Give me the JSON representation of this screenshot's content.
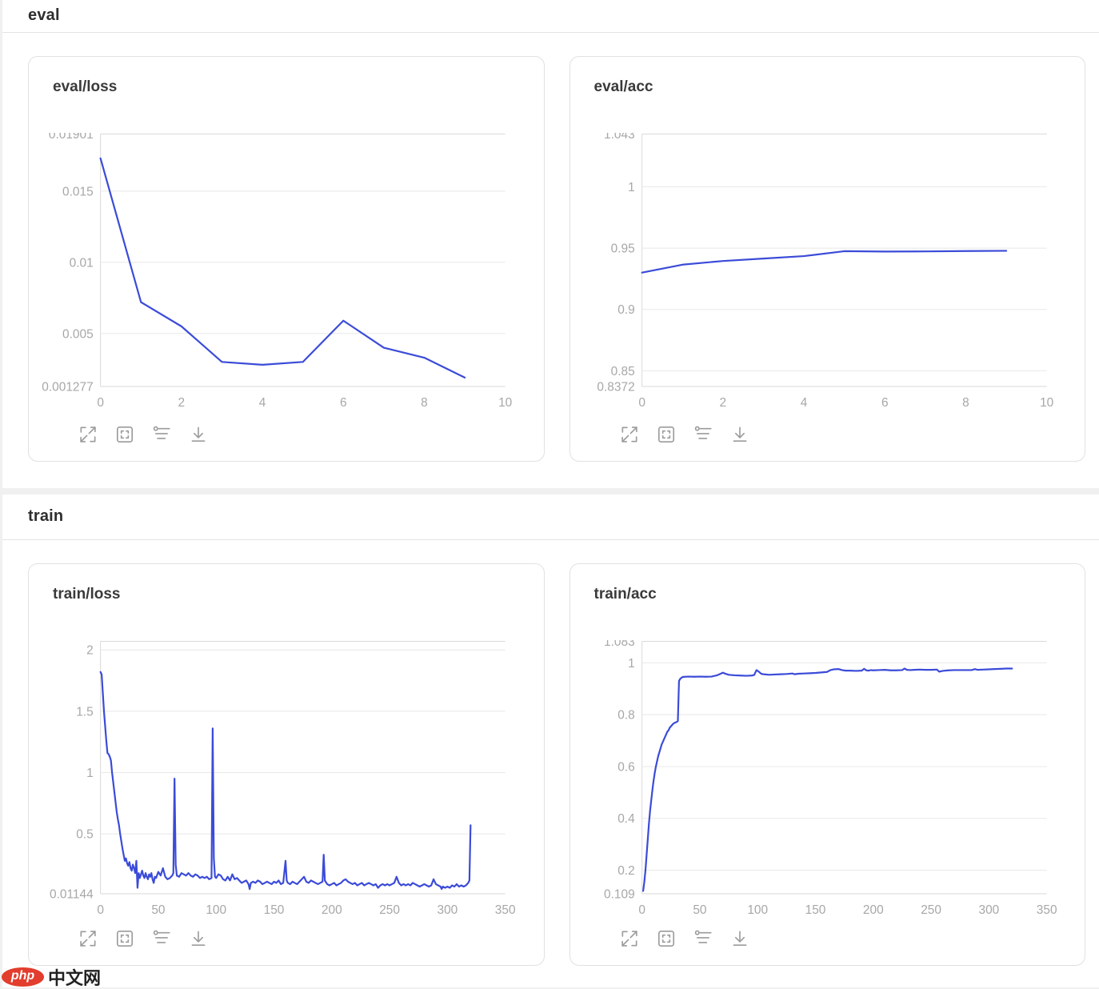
{
  "page": {
    "background": "#f0f0f1",
    "panel_background": "#ffffff",
    "card_border": "#e1e1e1"
  },
  "sections": [
    {
      "title": "eval"
    },
    {
      "title": "train"
    }
  ],
  "toolbar": {
    "icons": [
      {
        "name": "expand-icon"
      },
      {
        "name": "fit-view-icon"
      },
      {
        "name": "smoothing-filter-icon"
      },
      {
        "name": "download-icon"
      }
    ]
  },
  "watermark": {
    "badge": "php",
    "text": "中文网",
    "badge_color": "#e23d2d"
  },
  "chart_data": [
    {
      "type": "line",
      "title": "eval/loss",
      "line_color": "#3b4bd8",
      "xlim": [
        0,
        10
      ],
      "xticks": [
        {
          "v": 0,
          "label": "0"
        },
        {
          "v": 2,
          "label": "2"
        },
        {
          "v": 4,
          "label": "4"
        },
        {
          "v": 6,
          "label": "6"
        },
        {
          "v": 8,
          "label": "8"
        },
        {
          "v": 10,
          "label": "10"
        }
      ],
      "ylim": [
        0.001277,
        0.01901
      ],
      "yticks": [
        {
          "v": 0.01901,
          "label": "0.01901"
        },
        {
          "v": 0.015,
          "label": "0.015"
        },
        {
          "v": 0.01,
          "label": "0.01"
        },
        {
          "v": 0.005,
          "label": "0.005"
        },
        {
          "v": 0.001277,
          "label": "0.001277"
        }
      ],
      "x": [
        0,
        1,
        2,
        3,
        4,
        5,
        6,
        7,
        8,
        9
      ],
      "y": [
        0.0173,
        0.0072,
        0.0055,
        0.003,
        0.0028,
        0.003,
        0.0059,
        0.004,
        0.0033,
        0.0019
      ]
    },
    {
      "type": "line",
      "title": "eval/acc",
      "line_color": "#3b4bd8",
      "xlim": [
        0,
        10
      ],
      "xticks": [
        {
          "v": 0,
          "label": "0"
        },
        {
          "v": 2,
          "label": "2"
        },
        {
          "v": 4,
          "label": "4"
        },
        {
          "v": 6,
          "label": "6"
        },
        {
          "v": 8,
          "label": "8"
        },
        {
          "v": 10,
          "label": "10"
        }
      ],
      "ylim": [
        0.8372,
        1.043
      ],
      "yticks": [
        {
          "v": 1.043,
          "label": "1.043"
        },
        {
          "v": 1,
          "label": "1"
        },
        {
          "v": 0.95,
          "label": "0.95"
        },
        {
          "v": 0.9,
          "label": "0.9"
        },
        {
          "v": 0.85,
          "label": "0.85"
        },
        {
          "v": 0.8372,
          "label": "0.8372"
        }
      ],
      "x": [
        0,
        1,
        2,
        3,
        4,
        5,
        6,
        7,
        8,
        9
      ],
      "y": [
        0.93,
        0.9365,
        0.9395,
        0.9415,
        0.9435,
        0.9475,
        0.9472,
        0.9473,
        0.9476,
        0.9478
      ]
    },
    {
      "type": "line",
      "title": "train/loss",
      "line_color": "#3b4bd8",
      "xlim": [
        0,
        350
      ],
      "xticks": [
        {
          "v": 0,
          "label": "0"
        },
        {
          "v": 50,
          "label": "50"
        },
        {
          "v": 100,
          "label": "100"
        },
        {
          "v": 150,
          "label": "150"
        },
        {
          "v": 200,
          "label": "200"
        },
        {
          "v": 250,
          "label": "250"
        },
        {
          "v": 300,
          "label": "300"
        },
        {
          "v": 350,
          "label": "350"
        }
      ],
      "ylim": [
        0.01144,
        2.07
      ],
      "yticks": [
        {
          "v": 2,
          "label": "2"
        },
        {
          "v": 1.5,
          "label": "1.5"
        },
        {
          "v": 1,
          "label": "1"
        },
        {
          "v": 0.5,
          "label": "0.5"
        },
        {
          "v": 0.01144,
          "label": "0.01144"
        }
      ],
      "x": [
        0,
        1,
        2,
        3,
        4,
        5,
        6,
        7,
        8,
        9,
        10,
        11,
        12,
        13,
        14,
        15,
        16,
        17,
        18,
        19,
        20,
        21,
        22,
        23,
        24,
        25,
        26,
        27,
        28,
        29,
        30,
        31,
        32,
        33,
        34,
        35,
        36,
        37,
        38,
        39,
        40,
        41,
        42,
        43,
        44,
        45,
        46,
        47,
        48,
        50,
        52,
        54,
        56,
        58,
        60,
        62,
        63,
        64,
        65,
        66,
        68,
        70,
        72,
        74,
        76,
        78,
        80,
        82,
        84,
        86,
        88,
        90,
        92,
        94,
        96,
        97,
        98,
        99,
        100,
        102,
        104,
        106,
        108,
        110,
        112,
        114,
        116,
        118,
        120,
        122,
        124,
        126,
        128,
        129,
        130,
        132,
        134,
        136,
        138,
        140,
        142,
        144,
        146,
        148,
        150,
        152,
        154,
        156,
        158,
        160,
        161,
        162,
        164,
        166,
        168,
        170,
        172,
        174,
        176,
        178,
        180,
        182,
        184,
        186,
        188,
        190,
        192,
        193,
        194,
        196,
        198,
        200,
        202,
        204,
        206,
        208,
        210,
        212,
        214,
        216,
        218,
        220,
        222,
        224,
        226,
        228,
        230,
        232,
        234,
        236,
        238,
        240,
        242,
        244,
        246,
        248,
        250,
        252,
        254,
        256,
        258,
        260,
        262,
        264,
        266,
        268,
        270,
        272,
        274,
        276,
        278,
        280,
        282,
        284,
        286,
        288,
        290,
        292,
        294,
        295,
        296,
        298,
        300,
        302,
        304,
        306,
        308,
        310,
        312,
        314,
        316,
        318,
        319,
        320
      ],
      "y": [
        1.82,
        1.8,
        1.65,
        1.5,
        1.38,
        1.26,
        1.16,
        1.15,
        1.13,
        1.1,
        1.0,
        0.92,
        0.84,
        0.76,
        0.68,
        0.62,
        0.57,
        0.5,
        0.44,
        0.38,
        0.33,
        0.28,
        0.3,
        0.26,
        0.24,
        0.27,
        0.22,
        0.2,
        0.25,
        0.22,
        0.18,
        0.28,
        0.06,
        0.18,
        0.14,
        0.17,
        0.2,
        0.16,
        0.14,
        0.18,
        0.15,
        0.13,
        0.17,
        0.15,
        0.18,
        0.13,
        0.1,
        0.15,
        0.14,
        0.19,
        0.16,
        0.22,
        0.15,
        0.13,
        0.14,
        0.16,
        0.18,
        0.95,
        0.25,
        0.16,
        0.15,
        0.18,
        0.17,
        0.16,
        0.18,
        0.16,
        0.15,
        0.17,
        0.16,
        0.14,
        0.15,
        0.14,
        0.15,
        0.13,
        0.14,
        1.36,
        0.3,
        0.15,
        0.14,
        0.17,
        0.16,
        0.13,
        0.12,
        0.15,
        0.12,
        0.17,
        0.13,
        0.14,
        0.12,
        0.1,
        0.11,
        0.12,
        0.09,
        0.05,
        0.1,
        0.11,
        0.1,
        0.12,
        0.11,
        0.09,
        0.1,
        0.11,
        0.1,
        0.09,
        0.11,
        0.1,
        0.12,
        0.09,
        0.1,
        0.28,
        0.12,
        0.1,
        0.09,
        0.11,
        0.1,
        0.09,
        0.11,
        0.13,
        0.15,
        0.11,
        0.1,
        0.12,
        0.11,
        0.1,
        0.09,
        0.1,
        0.11,
        0.33,
        0.12,
        0.09,
        0.08,
        0.09,
        0.1,
        0.08,
        0.09,
        0.1,
        0.12,
        0.13,
        0.11,
        0.1,
        0.09,
        0.1,
        0.08,
        0.09,
        0.1,
        0.08,
        0.09,
        0.1,
        0.09,
        0.08,
        0.09,
        0.06,
        0.08,
        0.09,
        0.08,
        0.09,
        0.08,
        0.09,
        0.1,
        0.15,
        0.1,
        0.08,
        0.09,
        0.08,
        0.09,
        0.08,
        0.1,
        0.09,
        0.08,
        0.07,
        0.08,
        0.09,
        0.08,
        0.07,
        0.08,
        0.13,
        0.09,
        0.08,
        0.07,
        0.05,
        0.07,
        0.06,
        0.07,
        0.06,
        0.08,
        0.07,
        0.09,
        0.07,
        0.08,
        0.07,
        0.08,
        0.1,
        0.12,
        0.57
      ]
    },
    {
      "type": "line",
      "title": "train/acc",
      "line_color": "#3b4bd8",
      "xlim": [
        0,
        350
      ],
      "xticks": [
        {
          "v": 0,
          "label": "0"
        },
        {
          "v": 50,
          "label": "50"
        },
        {
          "v": 100,
          "label": "100"
        },
        {
          "v": 150,
          "label": "150"
        },
        {
          "v": 200,
          "label": "200"
        },
        {
          "v": 250,
          "label": "250"
        },
        {
          "v": 300,
          "label": "300"
        },
        {
          "v": 350,
          "label": "350"
        }
      ],
      "ylim": [
        0.109,
        1.083
      ],
      "yticks": [
        {
          "v": 1.083,
          "label": "1.083"
        },
        {
          "v": 1,
          "label": "1"
        },
        {
          "v": 0.8,
          "label": "0.8"
        },
        {
          "v": 0.6,
          "label": "0.6"
        },
        {
          "v": 0.4,
          "label": "0.4"
        },
        {
          "v": 0.2,
          "label": "0.2"
        },
        {
          "v": 0.109,
          "label": "0.109"
        }
      ],
      "x": [
        1,
        2,
        3,
        4,
        5,
        6,
        7,
        8,
        9,
        10,
        11,
        12,
        13,
        14,
        15,
        16,
        17,
        18,
        19,
        20,
        21,
        22,
        23,
        24,
        25,
        26,
        27,
        28,
        29,
        30,
        31,
        32,
        33,
        34,
        35,
        36,
        40,
        45,
        50,
        55,
        60,
        65,
        68,
        70,
        72,
        75,
        80,
        85,
        90,
        95,
        97,
        99,
        101,
        103,
        105,
        110,
        115,
        120,
        125,
        130,
        132,
        135,
        140,
        145,
        150,
        155,
        160,
        163,
        166,
        170,
        173,
        176,
        180,
        185,
        190,
        192,
        194,
        196,
        198,
        200,
        205,
        210,
        215,
        220,
        225,
        227,
        229,
        232,
        235,
        240,
        245,
        250,
        255,
        257,
        260,
        265,
        270,
        275,
        280,
        285,
        288,
        290,
        295,
        300,
        305,
        310,
        315,
        320
      ],
      "y": [
        0.12,
        0.155,
        0.2,
        0.26,
        0.32,
        0.38,
        0.43,
        0.47,
        0.51,
        0.545,
        0.575,
        0.6,
        0.62,
        0.64,
        0.655,
        0.67,
        0.685,
        0.695,
        0.705,
        0.715,
        0.725,
        0.735,
        0.74,
        0.75,
        0.755,
        0.76,
        0.765,
        0.768,
        0.77,
        0.772,
        0.775,
        0.93,
        0.938,
        0.942,
        0.945,
        0.946,
        0.947,
        0.9465,
        0.947,
        0.9465,
        0.947,
        0.952,
        0.958,
        0.962,
        0.958,
        0.954,
        0.952,
        0.951,
        0.95,
        0.951,
        0.953,
        0.972,
        0.966,
        0.958,
        0.956,
        0.954,
        0.955,
        0.956,
        0.957,
        0.959,
        0.956,
        0.958,
        0.959,
        0.96,
        0.961,
        0.963,
        0.965,
        0.972,
        0.975,
        0.976,
        0.972,
        0.97,
        0.97,
        0.969,
        0.97,
        0.977,
        0.971,
        0.97,
        0.972,
        0.971,
        0.972,
        0.973,
        0.971,
        0.971,
        0.972,
        0.978,
        0.973,
        0.972,
        0.973,
        0.974,
        0.973,
        0.973,
        0.974,
        0.966,
        0.969,
        0.971,
        0.972,
        0.972,
        0.972,
        0.972,
        0.976,
        0.973,
        0.974,
        0.975,
        0.976,
        0.977,
        0.978,
        0.978
      ]
    }
  ]
}
